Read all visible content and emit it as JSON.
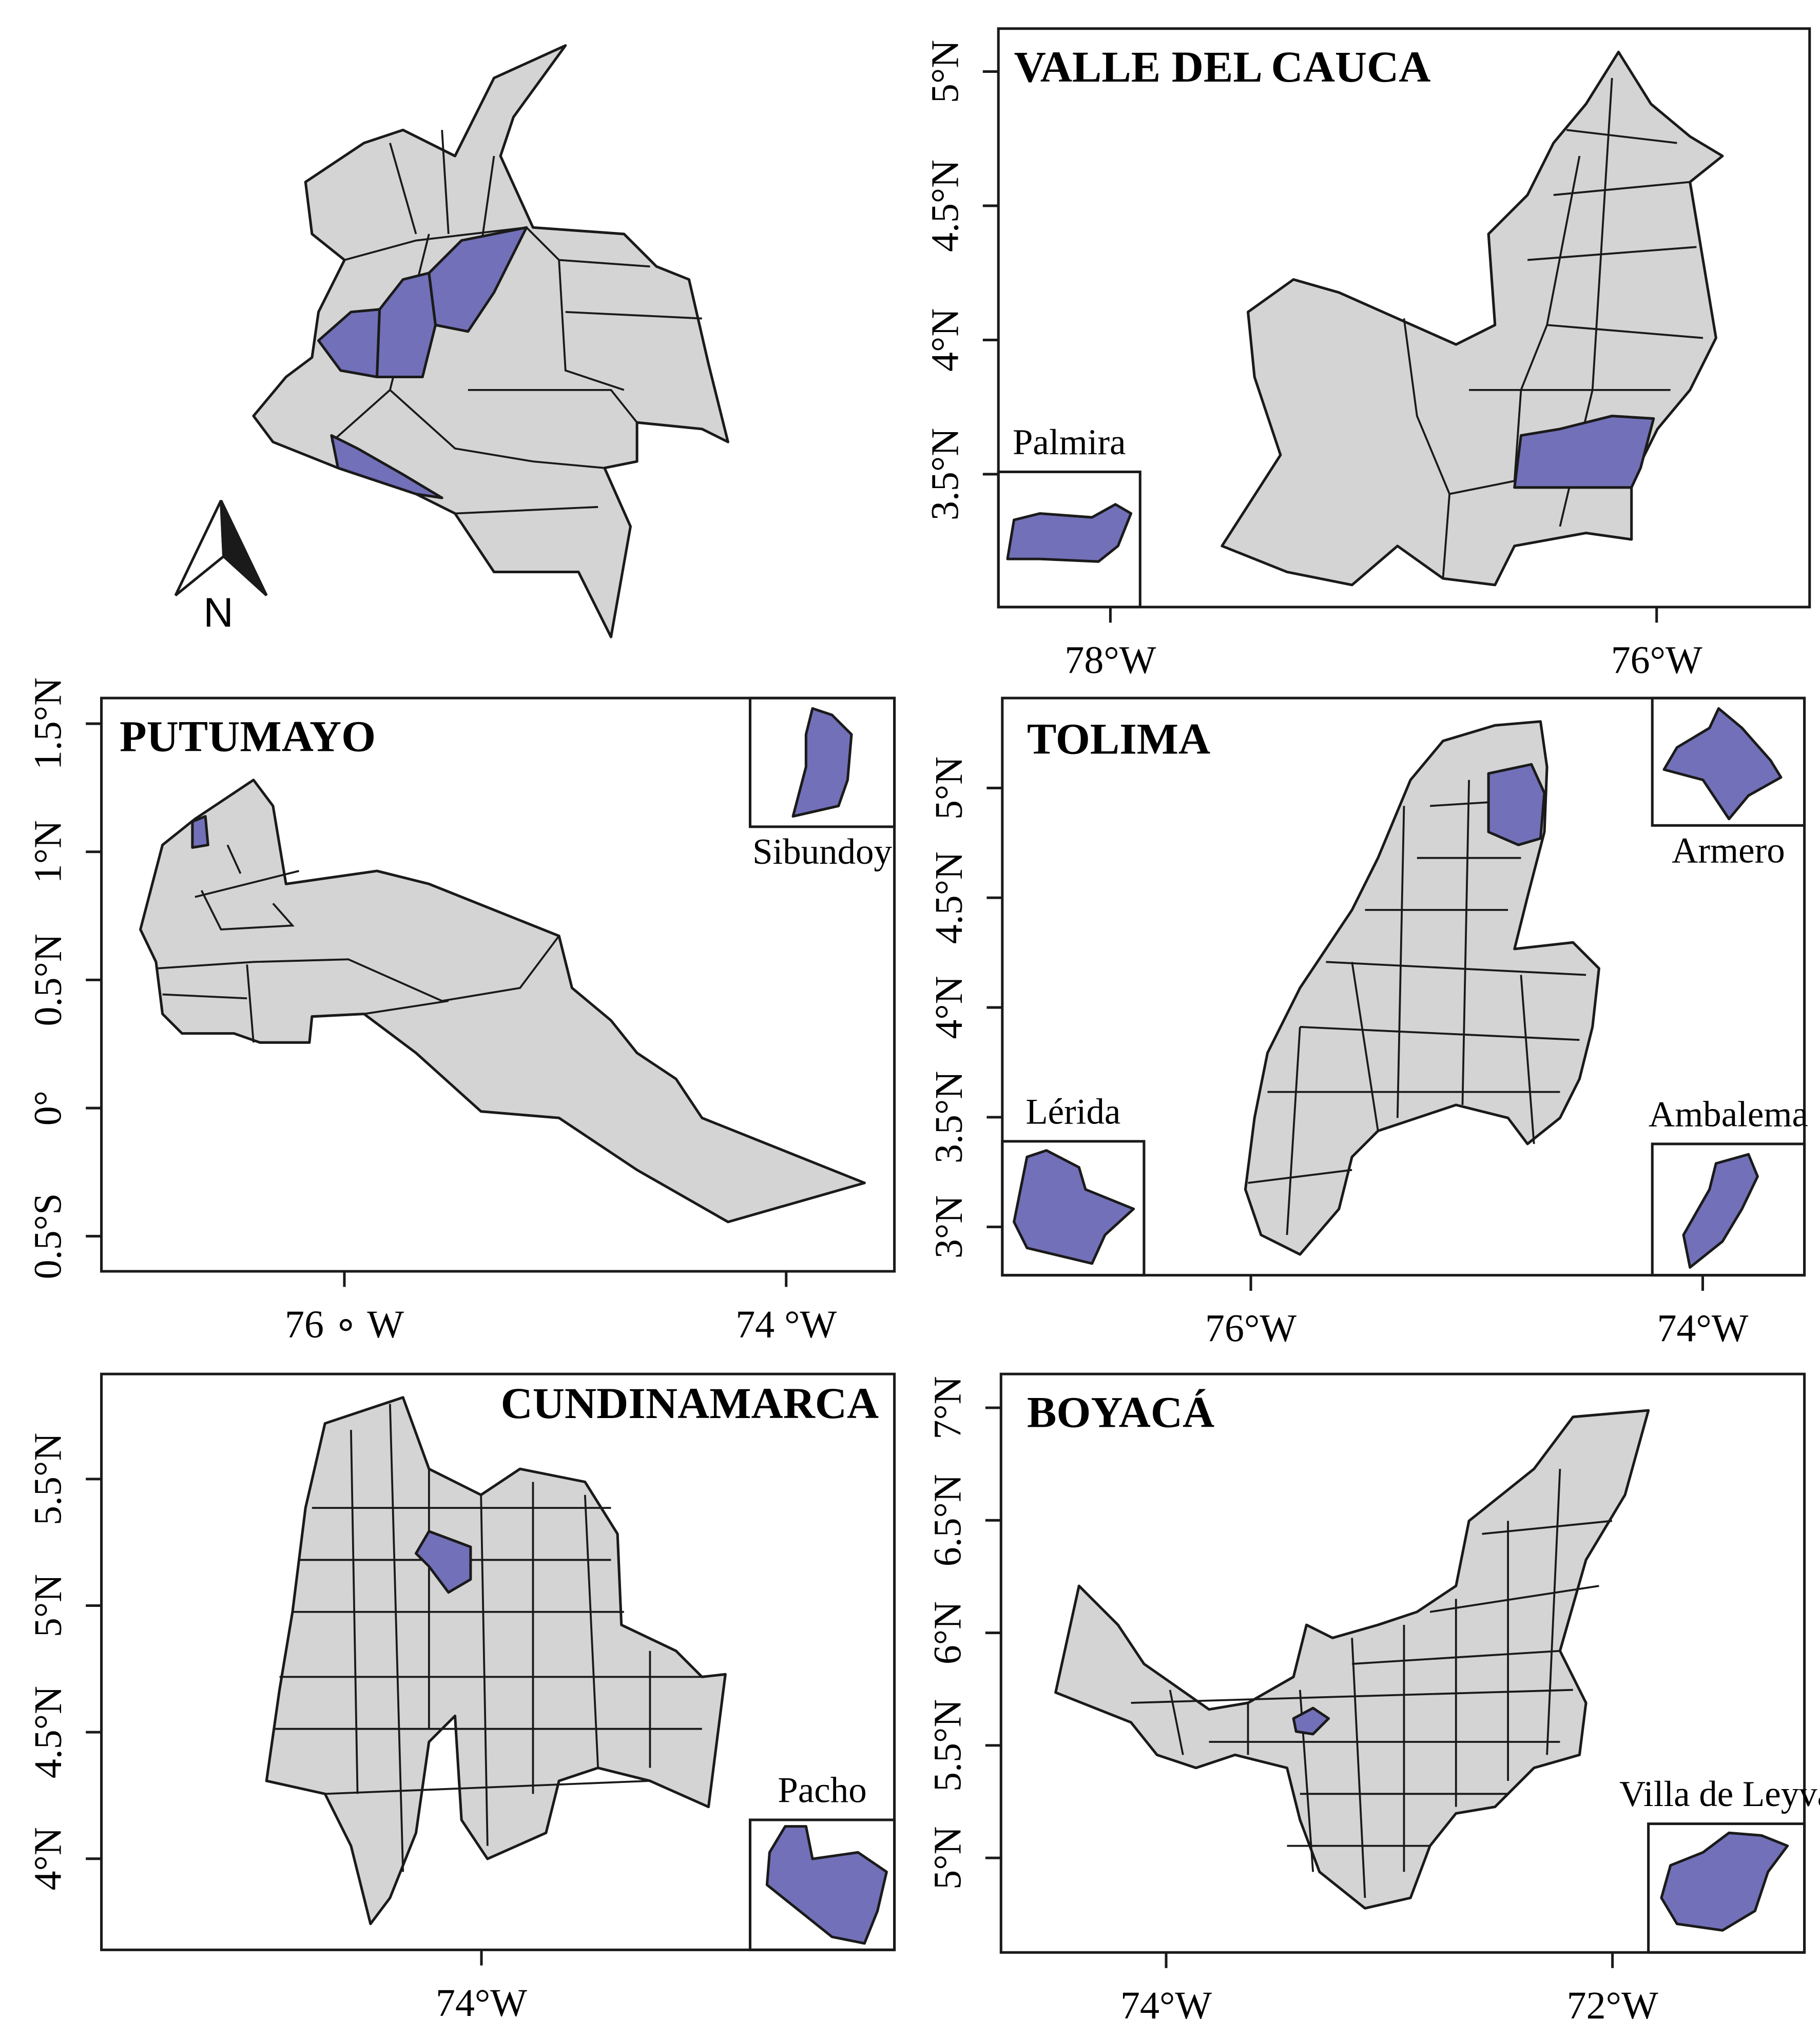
{
  "overview": {
    "north_label": "N"
  },
  "panels": [
    {
      "title": "VALLE DEL CAUCA",
      "xlim": [
        -78.41,
        -75.44
      ],
      "ylim": [
        3.005,
        5.16
      ],
      "xticks": [
        {
          "value": -78,
          "label": "78°W"
        },
        {
          "value": -76,
          "label": "76°W"
        }
      ],
      "yticks": [
        {
          "value": 5,
          "label": "5°N"
        },
        {
          "value": 4.5,
          "label": "4.5°N"
        },
        {
          "value": 4,
          "label": "4°N"
        },
        {
          "value": 3.5,
          "label": "3.5°N"
        }
      ],
      "insets": [
        {
          "label": "Palmira"
        }
      ]
    },
    {
      "title": "PUTUMAYO",
      "xlim": [
        -77.1,
        -73.51
      ],
      "ylim": [
        -0.637,
        1.6
      ],
      "xticks": [
        {
          "value": -76,
          "label": "76 ∘ W"
        },
        {
          "value": -74,
          "label": "74 °W"
        }
      ],
      "yticks": [
        {
          "value": 1.5,
          "label": "1.5°N"
        },
        {
          "value": 1,
          "label": "1°N"
        },
        {
          "value": 0.5,
          "label": "0.5°N"
        },
        {
          "value": 0,
          "label": "0°"
        },
        {
          "value": -0.5,
          "label": "0.5°S"
        }
      ],
      "insets": [
        {
          "label": "Sibundoy"
        }
      ]
    },
    {
      "title": "TOLIMA",
      "xlim": [
        -77.1,
        -73.55
      ],
      "ylim": [
        2.78,
        5.41
      ],
      "xticks": [
        {
          "value": -76,
          "label": "76°W"
        },
        {
          "value": -74,
          "label": "74°W"
        }
      ],
      "yticks": [
        {
          "value": 5,
          "label": "5°N"
        },
        {
          "value": 4.5,
          "label": "4.5°N"
        },
        {
          "value": 4,
          "label": "4°N"
        },
        {
          "value": 3.5,
          "label": "3.5°N"
        },
        {
          "value": 3,
          "label": "3°N"
        }
      ],
      "insets": [
        {
          "label": "Armero"
        },
        {
          "label": "Lérida"
        },
        {
          "label": "Ambalema"
        }
      ]
    },
    {
      "title": "CUNDINAMARCA",
      "xlim": [
        -75.5,
        -72.37
      ],
      "ylim": [
        3.64,
        5.915
      ],
      "xticks": [
        {
          "value": -74,
          "label": "74°W"
        }
      ],
      "yticks": [
        {
          "value": 5.5,
          "label": "5.5°N"
        },
        {
          "value": 5,
          "label": "5°N"
        },
        {
          "value": 4.5,
          "label": "4.5°N"
        },
        {
          "value": 4,
          "label": "4°N"
        }
      ],
      "insets": [
        {
          "label": "Pacho"
        }
      ]
    },
    {
      "title": "BOYACÁ",
      "xlim": [
        -74.74,
        -71.14
      ],
      "ylim": [
        4.58,
        7.15
      ],
      "xticks": [
        {
          "value": -74,
          "label": "74°W"
        },
        {
          "value": -72,
          "label": "72°W"
        }
      ],
      "yticks": [
        {
          "value": 7,
          "label": "7°N"
        },
        {
          "value": 6.5,
          "label": "6.5°N"
        },
        {
          "value": 6,
          "label": "6°N"
        },
        {
          "value": 5.5,
          "label": "5.5°N"
        },
        {
          "value": 5,
          "label": "5°N"
        }
      ],
      "insets": [
        {
          "label": "Villa de Leyva"
        }
      ]
    }
  ]
}
